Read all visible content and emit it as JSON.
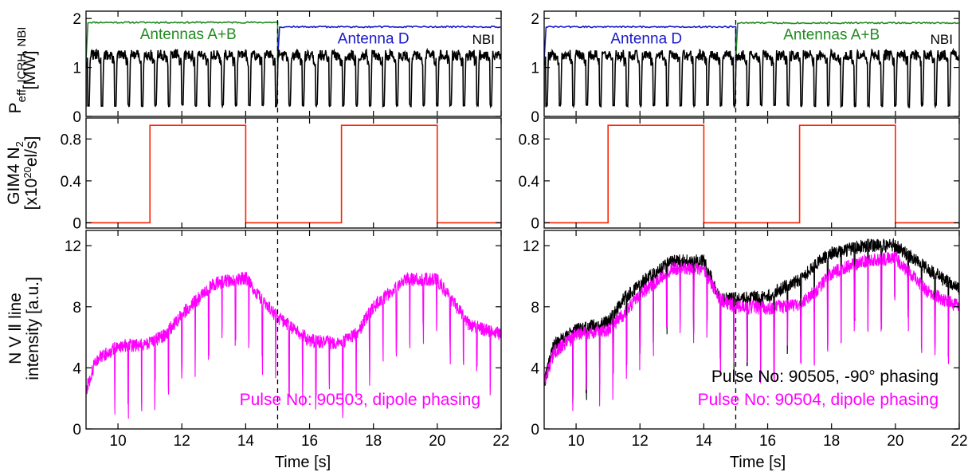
{
  "chart_data": {
    "type": "line",
    "x_range": [
      9,
      22
    ],
    "x_ticks": [
      "10",
      "12",
      "14",
      "16",
      "18",
      "20",
      "22"
    ],
    "xlabel": "Time [s]",
    "vline_x": 15,
    "colors": {
      "antennas_ab": "#228B22",
      "antenna_d": "#1a1acc",
      "nbi": "#000000",
      "gas": "#ff2200",
      "pulse_black": "#000000",
      "pulse_magenta": "#ff00ff"
    },
    "panels": [
      {
        "id": "left-power",
        "ylim": [
          0,
          2.15
        ],
        "y_ticks": [
          "0",
          "1",
          "2"
        ],
        "ylabel_lines": [
          "P",
          "eff. ICRH, NBI",
          "[MW]"
        ],
        "series": [
          {
            "name": "Antennas A+B",
            "kind": "icrh",
            "x_range": [
              9,
              15
            ],
            "level": 1.92
          },
          {
            "name": "Antenna D",
            "kind": "icrh",
            "x_range": [
              15,
              22
            ],
            "level": 1.83
          },
          {
            "name": "NBI",
            "kind": "nbi",
            "x_range": [
              9,
              22
            ],
            "level": 1.3,
            "dip_to": 0.2,
            "dip_period_s": 0.42
          }
        ]
      },
      {
        "id": "left-gas",
        "ylim": [
          -0.05,
          1.0
        ],
        "y_ticks": [
          "0",
          "0.4",
          "0.8"
        ],
        "ylabel_lines": [
          "GIM4 N",
          "2",
          "[x10",
          "20",
          "el/s]"
        ],
        "series": [
          {
            "name": "N2 gas",
            "x": [
              9,
              11,
              11,
              14,
              14,
              17,
              17,
              20,
              20,
              22
            ],
            "y": [
              0,
              0,
              0.93,
              0.93,
              0,
              0,
              0.93,
              0.93,
              0,
              0
            ]
          }
        ]
      },
      {
        "id": "left-nv",
        "ylim": [
          0,
          13
        ],
        "y_ticks": [
          "0",
          "4",
          "8",
          "12"
        ],
        "ylabel_lines": [
          "N V Ⅱ line",
          "intensity [a.u.]"
        ],
        "series": [
          {
            "name": "Pulse No: 90503, dipole phasing",
            "kind": "pulse",
            "x": [
              9,
              9.3,
              10,
              11,
              11.5,
              12,
              13,
              14,
              14.5,
              15,
              16,
              17,
              17.5,
              18,
              19,
              20,
              21,
              22
            ],
            "y": [
              2.5,
              4.5,
              5.4,
              5.6,
              6.2,
              7.5,
              9.5,
              9.9,
              8.5,
              7.3,
              5.8,
              5.6,
              6.3,
              8.0,
              9.8,
              9.8,
              6.8,
              6.2
            ]
          }
        ]
      },
      {
        "id": "right-power",
        "ylim": [
          0,
          2.15
        ],
        "y_ticks": [
          "0",
          "1",
          "2"
        ],
        "series": [
          {
            "name": "Antenna D",
            "kind": "icrh",
            "x_range": [
              9,
              15
            ],
            "level": 1.83
          },
          {
            "name": "Antennas A+B",
            "kind": "icrh",
            "x_range": [
              15,
              22
            ],
            "level": 1.91
          },
          {
            "name": "NBI",
            "kind": "nbi",
            "x_range": [
              9,
              22
            ],
            "level": 1.3,
            "dip_to": 0.2,
            "dip_period_s": 0.42
          }
        ]
      },
      {
        "id": "right-gas",
        "ylim": [
          -0.05,
          1.0
        ],
        "y_ticks": [
          "0",
          "0.4",
          "0.8"
        ],
        "series": [
          {
            "name": "N2 gas",
            "x": [
              9,
              11,
              11,
              14,
              14,
              17,
              17,
              20,
              20,
              22
            ],
            "y": [
              0,
              0,
              0.93,
              0.93,
              0,
              0,
              0.93,
              0.93,
              0,
              0
            ]
          }
        ]
      },
      {
        "id": "right-nv",
        "ylim": [
          0,
          13
        ],
        "y_ticks": [
          "0",
          "4",
          "8",
          "12"
        ],
        "series": [
          {
            "name": "Pulse No: 90505, -90° phasing",
            "kind": "pulse",
            "x": [
              9,
              9.3,
              10,
              11,
              11.5,
              12,
              13,
              14,
              14.5,
              15,
              16,
              17,
              17.5,
              18,
              19,
              20,
              21,
              22
            ],
            "y": [
              3.0,
              5.5,
              6.5,
              7.0,
              8.5,
              9.5,
              11.0,
              11.0,
              8.5,
              8.5,
              8.7,
              9.8,
              10.8,
              11.5,
              12.0,
              12.0,
              10.5,
              9.2
            ]
          },
          {
            "name": "Pulse No: 90504, dipole phasing",
            "kind": "pulse",
            "x": [
              9,
              9.3,
              10,
              11,
              11.5,
              12,
              13,
              14,
              14.5,
              15,
              16,
              17,
              17.5,
              18,
              19,
              20,
              21,
              22
            ],
            "y": [
              3.0,
              5.0,
              6.2,
              6.5,
              7.5,
              8.8,
              10.5,
              10.5,
              8.5,
              8.0,
              7.9,
              8.2,
              9.0,
              10.2,
              11.0,
              11.2,
              9.0,
              8.0
            ]
          }
        ]
      }
    ]
  }
}
